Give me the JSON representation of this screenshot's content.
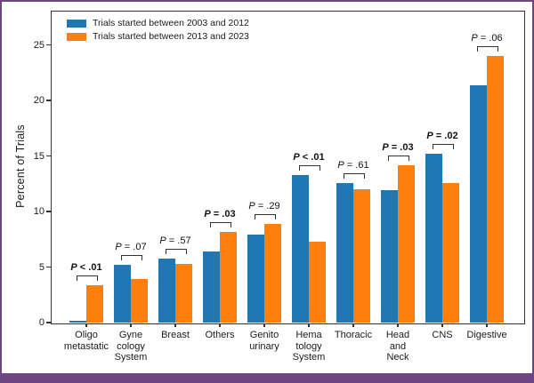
{
  "frame": {
    "border_color": "#6d4583",
    "footer_bar_color": "#6d4583",
    "axis_color": "#333333"
  },
  "chart_data": {
    "type": "bar",
    "title": "",
    "xlabel": "",
    "ylabel": "Percent of Trials",
    "ylim": [
      0,
      28
    ],
    "yticks": [
      0,
      5,
      10,
      15,
      20,
      25
    ],
    "grid": "off",
    "legend_position": "upper-left-inside",
    "categories": [
      "Oligo\nmetastatic",
      "Gyne\ncology\nSystem",
      "Breast",
      "Others",
      "Genito\nurinary",
      "Hema\ntology\nSystem",
      "Thoracic",
      "Head\nand\nNeck",
      "CNS",
      "Digestive"
    ],
    "series": [
      {
        "name": "Trials started between 2003 and 2012",
        "color": "#1f77b4",
        "values": [
          0.2,
          5.2,
          5.8,
          6.4,
          7.9,
          13.3,
          12.6,
          11.9,
          15.2,
          21.4
        ]
      },
      {
        "name": "Trials started between 2013 and 2023",
        "color": "#ff7f0e",
        "values": [
          3.4,
          3.9,
          5.3,
          8.2,
          8.9,
          7.3,
          12.0,
          14.2,
          12.6,
          24.0
        ]
      }
    ],
    "annotations": [
      {
        "label": "P < .01",
        "bold": true
      },
      {
        "label": "P = .07",
        "bold": false
      },
      {
        "label": "P = .57",
        "bold": false
      },
      {
        "label": "P = .03",
        "bold": true
      },
      {
        "label": "P = .29",
        "bold": false
      },
      {
        "label": "P < .01",
        "bold": true
      },
      {
        "label": "P = .61",
        "bold": false
      },
      {
        "label": "P = .03",
        "bold": true
      },
      {
        "label": "P = .02",
        "bold": true
      },
      {
        "label": "P = .06",
        "bold": false
      }
    ]
  }
}
